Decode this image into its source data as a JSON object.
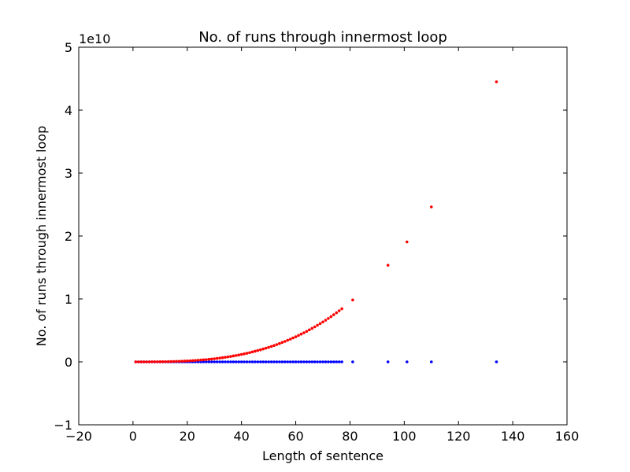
{
  "chart_data": {
    "type": "scatter",
    "title": "No. of runs through innermost loop",
    "xlabel": "Length of sentence",
    "ylabel": "No. of runs through innermost loop",
    "y_offset_label": "1e10",
    "xlim": [
      -20,
      160
    ],
    "xticks": [
      {
        "value": -20,
        "label": "−20"
      },
      0,
      20,
      40,
      60,
      80,
      100,
      120,
      140,
      160
    ],
    "ylim": [
      -1,
      5
    ],
    "yticks": [
      {
        "value": -1,
        "label": "−1"
      },
      0,
      1,
      2,
      3,
      4,
      5
    ],
    "x": [
      1,
      2,
      3,
      4,
      5,
      6,
      7,
      8,
      9,
      10,
      11,
      12,
      13,
      14,
      15,
      16,
      17,
      18,
      19,
      20,
      21,
      22,
      23,
      24,
      25,
      26,
      27,
      28,
      29,
      30,
      31,
      32,
      33,
      34,
      35,
      36,
      37,
      38,
      39,
      40,
      41,
      42,
      43,
      44,
      45,
      46,
      47,
      48,
      49,
      50,
      51,
      52,
      53,
      54,
      55,
      56,
      57,
      58,
      59,
      60,
      61,
      62,
      63,
      64,
      65,
      66,
      67,
      68,
      69,
      70,
      71,
      72,
      73,
      74,
      75,
      76,
      77,
      81,
      94,
      101,
      110,
      134
    ],
    "series": [
      {
        "color": "#0000ff",
        "values": [
          0,
          0,
          0,
          0,
          0,
          0,
          0,
          0,
          0,
          0,
          0,
          0,
          0,
          0,
          0,
          0,
          0,
          0,
          0,
          0,
          0,
          0,
          0,
          0,
          0,
          0,
          0,
          0,
          0,
          0,
          0,
          0,
          0,
          0,
          0,
          0,
          0,
          0,
          0,
          0,
          0,
          0,
          0,
          0,
          0,
          0,
          0,
          0,
          0,
          0,
          0,
          0,
          0,
          0,
          0,
          0,
          0,
          0,
          0,
          0,
          0,
          0,
          0,
          0,
          0,
          0,
          0,
          0,
          0,
          0,
          0,
          0,
          0,
          0,
          0,
          0,
          0,
          0,
          0,
          0,
          0,
          0
        ]
      },
      {
        "color": "#ff0000",
        "values": [
          0,
          0,
          0,
          0,
          0,
          0,
          0.001,
          0.001,
          0.001,
          0.002,
          0.002,
          0.003,
          0.004,
          0.005,
          0.006,
          0.008,
          0.009,
          0.011,
          0.013,
          0.015,
          0.017,
          0.02,
          0.023,
          0.026,
          0.029,
          0.033,
          0.036,
          0.041,
          0.045,
          0.05,
          0.055,
          0.061,
          0.066,
          0.073,
          0.079,
          0.086,
          0.094,
          0.101,
          0.11,
          0.118,
          0.127,
          0.137,
          0.147,
          0.158,
          0.169,
          0.18,
          0.192,
          0.205,
          0.218,
          0.231,
          0.245,
          0.26,
          0.275,
          0.291,
          0.308,
          0.325,
          0.343,
          0.361,
          0.38,
          0.399,
          0.42,
          0.441,
          0.462,
          0.485,
          0.508,
          0.532,
          0.556,
          0.582,
          0.608,
          0.634,
          0.662,
          0.69,
          0.719,
          0.749,
          0.78,
          0.812,
          0.844,
          0.983,
          1.536,
          1.906,
          2.462,
          4.45
        ]
      }
    ]
  }
}
